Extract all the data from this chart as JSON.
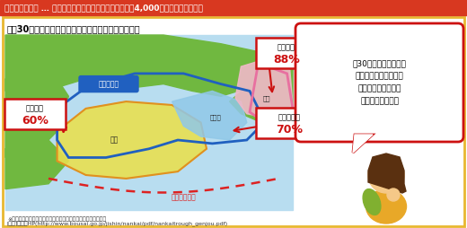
{
  "title_bar_text": "南海トラフとは … 駿河湾から九州東方沖まで続く深さ約4,000メートル級の深い溝",
  "title_bar_bg": "#d83820",
  "title_bar_text_color": "#ffffff",
  "main_bg": "#ffffff",
  "border_color": "#e8b830",
  "subtitle": "今後30年以内に南海トラフで巨大地震が発生する確率",
  "map_bg": "#b8ddf0",
  "land_color": "#70b840",
  "nankai_fill": "#e8e050",
  "nankai_outline": "#e09020",
  "tonankai_fill": "#90c8e8",
  "tokai_fill": "#f0b8c8",
  "blue_outline": "#2060c0",
  "pink_outline": "#e870a0",
  "trough_color": "#dd2222",
  "label_border": "#cc1111",
  "label_bg": "#ffffff",
  "shingen_bg": "#2060c0",
  "shingen_text": "#ffffff",
  "speech_border": "#cc1111",
  "speech_bg": "#ffffff",
  "speech_text": "「30年以内に発生する\n確率」と言われると、\n随分先の話のような\n気がするわ・・・",
  "source_line1": "※「発生する確率」であり、「被災する確率」ではありません。",
  "source_line2": "[出典]内閣府HP(http://www.bousai.go.jp/jishin/nankai/pdf/nankaitrough_genjou.pdf)"
}
